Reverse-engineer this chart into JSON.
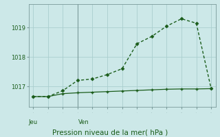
{
  "background_color": "#cce8e8",
  "plot_bg_color": "#cce8e8",
  "grid_color": "#aacece",
  "line_color": "#1a5c1a",
  "title": "Pression niveau de la mer( hPa )",
  "xlabel_day1": "Jeu",
  "xlabel_day2": "Ven",
  "ylim": [
    1016.3,
    1019.8
  ],
  "yticks": [
    1017,
    1018,
    1019
  ],
  "day_line_x": 3,
  "series1_x": [
    0,
    1,
    2,
    3,
    4,
    5,
    6,
    7,
    8,
    9,
    10,
    11,
    12
  ],
  "series1_y": [
    1016.65,
    1016.65,
    1016.85,
    1017.2,
    1017.25,
    1017.4,
    1017.6,
    1018.45,
    1018.7,
    1019.05,
    1019.3,
    1019.15,
    1016.92
  ],
  "series2_x": [
    0,
    1,
    2,
    3,
    4,
    5,
    6,
    7,
    8,
    9,
    10,
    11,
    12
  ],
  "series2_y": [
    1016.65,
    1016.65,
    1016.75,
    1016.78,
    1016.8,
    1016.82,
    1016.84,
    1016.86,
    1016.88,
    1016.9,
    1016.91,
    1016.91,
    1016.92
  ],
  "xlim": [
    -0.3,
    12.3
  ]
}
